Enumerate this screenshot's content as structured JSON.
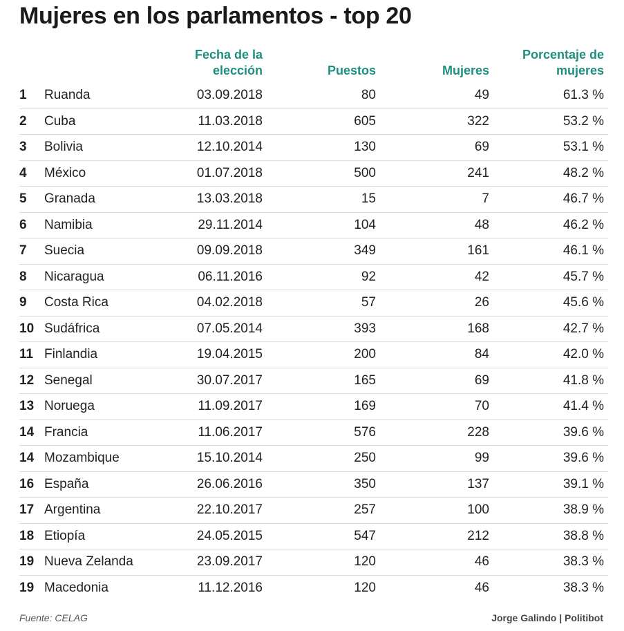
{
  "title": "Mujeres en los parlamentos - top 20",
  "headers": {
    "rank": "",
    "country": "",
    "date": "Fecha de la elección",
    "seats": "Puestos",
    "women": "Mujeres",
    "percent": "Porcentaje de mujeres"
  },
  "footer": {
    "source": "Fuente: CELAG",
    "credit": "Jorge Galindo | Politibot"
  },
  "chart_data": {
    "type": "table",
    "title": "Mujeres en los parlamentos - top 20",
    "columns": [
      "",
      "",
      "Fecha de la elección",
      "Puestos",
      "Mujeres",
      "Porcentaje de mujeres"
    ],
    "rows": [
      {
        "rank": "1",
        "country": "Ruanda",
        "date": "03.09.2018",
        "seats": "80",
        "women": "49",
        "percent": "61.3 %"
      },
      {
        "rank": "2",
        "country": "Cuba",
        "date": "11.03.2018",
        "seats": "605",
        "women": "322",
        "percent": "53.2 %"
      },
      {
        "rank": "3",
        "country": "Bolivia",
        "date": "12.10.2014",
        "seats": "130",
        "women": "69",
        "percent": "53.1 %"
      },
      {
        "rank": "4",
        "country": "México",
        "date": "01.07.2018",
        "seats": "500",
        "women": "241",
        "percent": "48.2 %"
      },
      {
        "rank": "5",
        "country": "Granada",
        "date": "13.03.2018",
        "seats": "15",
        "women": "7",
        "percent": "46.7 %"
      },
      {
        "rank": "6",
        "country": "Namibia",
        "date": "29.11.2014",
        "seats": "104",
        "women": "48",
        "percent": "46.2 %"
      },
      {
        "rank": "7",
        "country": "Suecia",
        "date": "09.09.2018",
        "seats": "349",
        "women": "161",
        "percent": "46.1 %"
      },
      {
        "rank": "8",
        "country": "Nicaragua",
        "date": "06.11.2016",
        "seats": "92",
        "women": "42",
        "percent": "45.7 %"
      },
      {
        "rank": "9",
        "country": "Costa Rica",
        "date": "04.02.2018",
        "seats": "57",
        "women": "26",
        "percent": "45.6 %"
      },
      {
        "rank": "10",
        "country": "Sudáfrica",
        "date": "07.05.2014",
        "seats": "393",
        "women": "168",
        "percent": "42.7 %"
      },
      {
        "rank": "11",
        "country": "Finlandia",
        "date": "19.04.2015",
        "seats": "200",
        "women": "84",
        "percent": "42.0 %"
      },
      {
        "rank": "12",
        "country": "Senegal",
        "date": "30.07.2017",
        "seats": "165",
        "women": "69",
        "percent": "41.8 %"
      },
      {
        "rank": "13",
        "country": "Noruega",
        "date": "11.09.2017",
        "seats": "169",
        "women": "70",
        "percent": "41.4 %"
      },
      {
        "rank": "14",
        "country": "Francia",
        "date": "11.06.2017",
        "seats": "576",
        "women": "228",
        "percent": "39.6 %"
      },
      {
        "rank": "14",
        "country": "Mozambique",
        "date": "15.10.2014",
        "seats": "250",
        "women": "99",
        "percent": "39.6 %"
      },
      {
        "rank": "16",
        "country": "España",
        "date": "26.06.2016",
        "seats": "350",
        "women": "137",
        "percent": "39.1 %"
      },
      {
        "rank": "17",
        "country": "Argentina",
        "date": "22.10.2017",
        "seats": "257",
        "women": "100",
        "percent": "38.9 %"
      },
      {
        "rank": "18",
        "country": "Etiopía",
        "date": "24.05.2015",
        "seats": "547",
        "women": "212",
        "percent": "38.8 %"
      },
      {
        "rank": "19",
        "country": "Nueva Zelanda",
        "date": "23.09.2017",
        "seats": "120",
        "women": "46",
        "percent": "38.3 %"
      },
      {
        "rank": "19",
        "country": "Macedonia",
        "date": "11.12.2016",
        "seats": "120",
        "women": "46",
        "percent": "38.3 %"
      }
    ]
  }
}
